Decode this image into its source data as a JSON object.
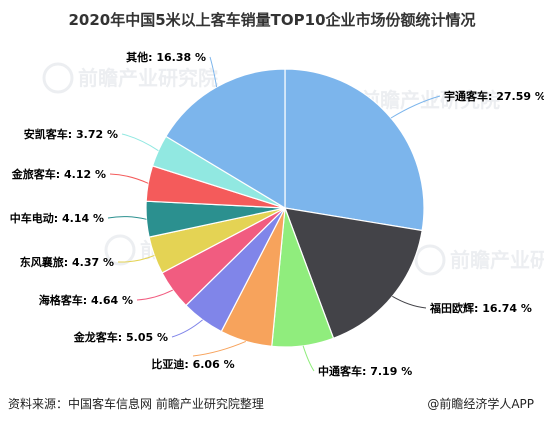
{
  "chart_data": {
    "type": "pie",
    "title": "2020年中国5米以上客车销量TOP10企业市场份额统计情况",
    "categories": [
      "宇通客车",
      "福田欧辉",
      "中通客车",
      "比亚迪",
      "金龙客车",
      "海格客车",
      "东风襄旅",
      "中车电动",
      "金旅客车",
      "安凯客车",
      "其他"
    ],
    "values": [
      27.59,
      16.74,
      7.19,
      6.06,
      5.05,
      4.64,
      4.37,
      4.14,
      4.12,
      3.72,
      16.38
    ],
    "labels": [
      "宇通客车: 27.59 %",
      "福田欧辉: 16.74 %",
      "中通客车: 7.19 %",
      "比亚迪: 6.06 %",
      "金龙客车: 5.05 %",
      "海格客车: 4.64 %",
      "东风襄旅: 4.37 %",
      "中车电动: 4.14 %",
      "金旅客车: 4.12 %",
      "安凯客车: 3.72 %",
      "其他: 16.38 %"
    ],
    "colors": [
      "#7cb5ec",
      "#434348",
      "#90ed7d",
      "#f7a35c",
      "#8085e9",
      "#f15c80",
      "#e4d354",
      "#2b908f",
      "#f45b5b",
      "#91e8e1",
      "#7cb5ec"
    ],
    "legend": "none"
  },
  "footer": {
    "source": "资料来源：中国客车信息网 前瞻产业研究院整理",
    "brand": "@前瞻经济学人APP"
  },
  "watermark": {
    "text": "前瞻产业研究院",
    "icon": "qianzhan-logo-icon"
  }
}
